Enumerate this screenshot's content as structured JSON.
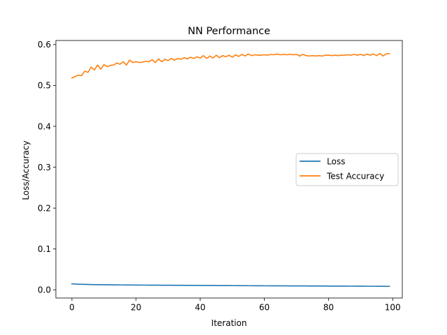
{
  "chart_data": {
    "type": "line",
    "title": "NN Performance",
    "xlabel": "Iteration",
    "ylabel": "Loss/Accuracy",
    "xlim": [
      -5,
      103
    ],
    "ylim": [
      -0.02,
      0.61
    ],
    "xticks": [
      0,
      20,
      40,
      60,
      80,
      100
    ],
    "xtick_labels": [
      "0",
      "20",
      "40",
      "60",
      "80",
      "100"
    ],
    "yticks": [
      0.0,
      0.1,
      0.2,
      0.3,
      0.4,
      0.5,
      0.6
    ],
    "ytick_labels": [
      "0.0",
      "0.1",
      "0.2",
      "0.3",
      "0.4",
      "0.5",
      "0.6"
    ],
    "grid": false,
    "legend_position": "center-right",
    "x": [
      0,
      1,
      2,
      3,
      4,
      5,
      6,
      7,
      8,
      9,
      10,
      11,
      12,
      13,
      14,
      15,
      16,
      17,
      18,
      19,
      20,
      21,
      22,
      23,
      24,
      25,
      26,
      27,
      28,
      29,
      30,
      31,
      32,
      33,
      34,
      35,
      36,
      37,
      38,
      39,
      40,
      41,
      42,
      43,
      44,
      45,
      46,
      47,
      48,
      49,
      50,
      51,
      52,
      53,
      54,
      55,
      56,
      57,
      58,
      59,
      60,
      61,
      62,
      63,
      64,
      65,
      66,
      67,
      68,
      69,
      70,
      71,
      72,
      73,
      74,
      75,
      76,
      77,
      78,
      79,
      80,
      81,
      82,
      83,
      84,
      85,
      86,
      87,
      88,
      89,
      90,
      91,
      92,
      93,
      94,
      95,
      96,
      97,
      98,
      99
    ],
    "series": [
      {
        "name": "Loss",
        "color": "#1f77b4",
        "values": [
          0.0148,
          0.0142,
          0.0138,
          0.0136,
          0.0134,
          0.0132,
          0.013,
          0.0128,
          0.0127,
          0.0126,
          0.0125,
          0.0124,
          0.0123,
          0.0122,
          0.0121,
          0.012,
          0.012,
          0.0119,
          0.0119,
          0.0118,
          0.0117,
          0.0117,
          0.0116,
          0.0116,
          0.0115,
          0.0115,
          0.0114,
          0.0114,
          0.0113,
          0.0113,
          0.0112,
          0.0112,
          0.0111,
          0.0111,
          0.011,
          0.011,
          0.0109,
          0.0109,
          0.0108,
          0.0108,
          0.0107,
          0.0107,
          0.0106,
          0.0106,
          0.0106,
          0.0105,
          0.0105,
          0.0104,
          0.0104,
          0.0104,
          0.0103,
          0.0103,
          0.0102,
          0.0102,
          0.0102,
          0.0101,
          0.0101,
          0.01,
          0.01,
          0.01,
          0.0099,
          0.0099,
          0.0098,
          0.0098,
          0.0098,
          0.0097,
          0.0097,
          0.0097,
          0.0096,
          0.0096,
          0.0096,
          0.0095,
          0.0095,
          0.0095,
          0.0094,
          0.0094,
          0.0094,
          0.0093,
          0.0093,
          0.0093,
          0.0092,
          0.0092,
          0.0092,
          0.0091,
          0.0091,
          0.0091,
          0.009,
          0.009,
          0.009,
          0.0089,
          0.0089,
          0.0089,
          0.0088,
          0.0088,
          0.0088,
          0.0087,
          0.0087,
          0.0087,
          0.0086,
          0.0086
        ]
      },
      {
        "name": "Test Accuracy",
        "color": "#ff7f0e",
        "values": [
          0.518,
          0.522,
          0.525,
          0.524,
          0.535,
          0.532,
          0.545,
          0.538,
          0.55,
          0.54,
          0.551,
          0.546,
          0.549,
          0.55,
          0.555,
          0.552,
          0.558,
          0.55,
          0.562,
          0.556,
          0.558,
          0.556,
          0.557,
          0.559,
          0.558,
          0.563,
          0.556,
          0.565,
          0.558,
          0.564,
          0.561,
          0.566,
          0.562,
          0.566,
          0.564,
          0.568,
          0.565,
          0.569,
          0.566,
          0.57,
          0.567,
          0.573,
          0.566,
          0.572,
          0.567,
          0.574,
          0.568,
          0.573,
          0.57,
          0.574,
          0.569,
          0.575,
          0.571,
          0.576,
          0.572,
          0.577,
          0.573,
          0.575,
          0.574,
          0.574,
          0.575,
          0.574,
          0.576,
          0.575,
          0.577,
          0.575,
          0.576,
          0.575,
          0.576,
          0.575,
          0.576,
          0.572,
          0.576,
          0.573,
          0.572,
          0.573,
          0.572,
          0.573,
          0.572,
          0.574,
          0.574,
          0.573,
          0.574,
          0.573,
          0.574,
          0.574,
          0.575,
          0.574,
          0.576,
          0.574,
          0.576,
          0.573,
          0.577,
          0.574,
          0.577,
          0.573,
          0.578,
          0.572,
          0.577,
          0.578
        ]
      }
    ]
  }
}
